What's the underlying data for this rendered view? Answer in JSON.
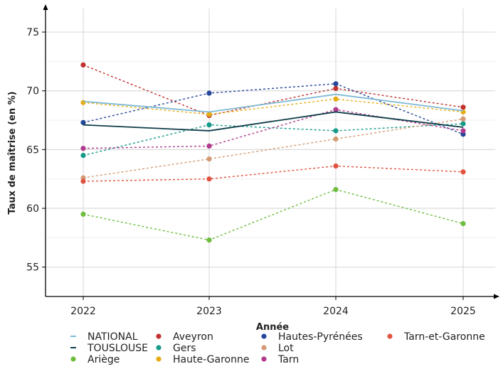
{
  "chart_data": {
    "type": "line",
    "title": "",
    "xlabel": "Année",
    "ylabel": "Taux de maîtrise (en %)",
    "categories": [
      "2022",
      "2023",
      "2024",
      "2025"
    ],
    "ylim": [
      52.5,
      77
    ],
    "yticks": [
      55,
      60,
      65,
      70,
      75
    ],
    "grid": true,
    "legend_position": "bottom",
    "series": [
      {
        "name": "NATIONAL",
        "values": [
          69.1,
          68.2,
          69.7,
          68.3
        ],
        "color": "#7fb9d6",
        "style": "solid-line",
        "marker": false
      },
      {
        "name": "TOUSLOUSE",
        "values": [
          67.1,
          66.6,
          68.2,
          66.9
        ],
        "color": "#0e3d4a",
        "style": "solid-line",
        "marker": false
      },
      {
        "name": "Ariège",
        "values": [
          59.5,
          57.3,
          61.6,
          58.7
        ],
        "color": "#6ebd3f",
        "style": "dashed",
        "marker": true
      },
      {
        "name": "Aveyron",
        "values": [
          72.2,
          67.9,
          70.2,
          68.6
        ],
        "color": "#c0302e",
        "style": "dashed",
        "marker": true
      },
      {
        "name": "Gers",
        "values": [
          64.5,
          67.1,
          66.6,
          67.2
        ],
        "color": "#169a8a",
        "style": "dashed",
        "marker": true
      },
      {
        "name": "Haute-Garonne",
        "values": [
          69.0,
          68.0,
          69.3,
          68.2
        ],
        "color": "#e6ad12",
        "style": "dashed",
        "marker": true
      },
      {
        "name": "Hautes-Pyrénées",
        "values": [
          67.3,
          69.8,
          70.6,
          66.3
        ],
        "color": "#24479b",
        "style": "dashed",
        "marker": true
      },
      {
        "name": "Lot",
        "values": [
          62.6,
          64.2,
          65.9,
          67.6
        ],
        "color": "#d39a74",
        "style": "dashed",
        "marker": true
      },
      {
        "name": "Tarn",
        "values": [
          65.1,
          65.3,
          68.4,
          66.6
        ],
        "color": "#b03a8e",
        "style": "dashed",
        "marker": true
      },
      {
        "name": "Tarn-et-Garonne",
        "values": [
          62.3,
          62.5,
          63.6,
          63.1
        ],
        "color": "#e0533f",
        "style": "dashed",
        "marker": true
      }
    ]
  }
}
